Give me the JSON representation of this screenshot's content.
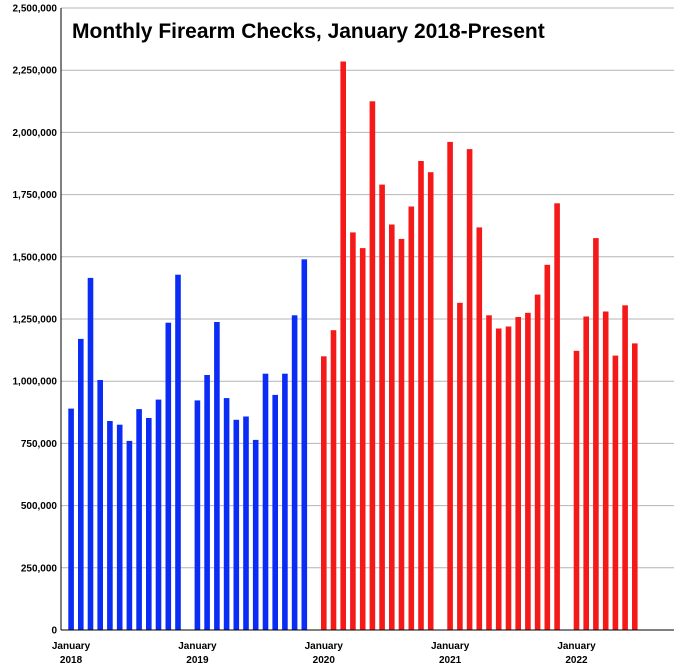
{
  "chart_data": {
    "type": "bar",
    "title": "Monthly Firearm Checks, January 2018-Present",
    "xlabel": "",
    "ylabel": "",
    "ylim": [
      0,
      2500000
    ],
    "y_ticks": [
      0,
      250000,
      500000,
      750000,
      1000000,
      1250000,
      1500000,
      1750000,
      2000000,
      2250000,
      2500000
    ],
    "y_tick_labels": [
      "0",
      "250,000",
      "500,000",
      "750,000",
      "1,000,000",
      "1,250,000",
      "1,500,000",
      "1,750,000",
      "2,000,000",
      "2,250,000",
      "2,500,000"
    ],
    "grid": true,
    "legend": "none",
    "x_tick_labels": [
      {
        "line1": "January",
        "line2": "2018"
      },
      {
        "line1": "January",
        "line2": "2019"
      },
      {
        "line1": "January",
        "line2": "2020"
      },
      {
        "line1": "January",
        "line2": "2021"
      },
      {
        "line1": "January",
        "line2": "2022"
      }
    ],
    "series": [
      {
        "year": "2018",
        "color": "#0a2cf5",
        "values": [
          890000,
          1170000,
          1415000,
          1005000,
          840000,
          825000,
          760000,
          888000,
          852000,
          926000,
          1235000,
          1428000
        ]
      },
      {
        "year": "2019",
        "color": "#0a2cf5",
        "values": [
          923000,
          1025000,
          1238000,
          932000,
          845000,
          858000,
          764000,
          1030000,
          945000,
          1030000,
          1265000,
          1490000
        ]
      },
      {
        "year": "2020",
        "color": "#f51a1a",
        "values": [
          1100000,
          1205000,
          2285000,
          1598000,
          1535000,
          2125000,
          1790000,
          1630000,
          1572000,
          1702000,
          1885000,
          1840000
        ]
      },
      {
        "year": "2021",
        "color": "#f51a1a",
        "values": [
          1962000,
          1315000,
          1933000,
          1618000,
          1265000,
          1212000,
          1220000,
          1258000,
          1275000,
          1348000,
          1468000,
          1715000
        ]
      },
      {
        "year": "2022",
        "color": "#f51a1a",
        "values": [
          1122000,
          1260000,
          1575000,
          1280000,
          1103000,
          1305000,
          1152000
        ]
      }
    ]
  }
}
